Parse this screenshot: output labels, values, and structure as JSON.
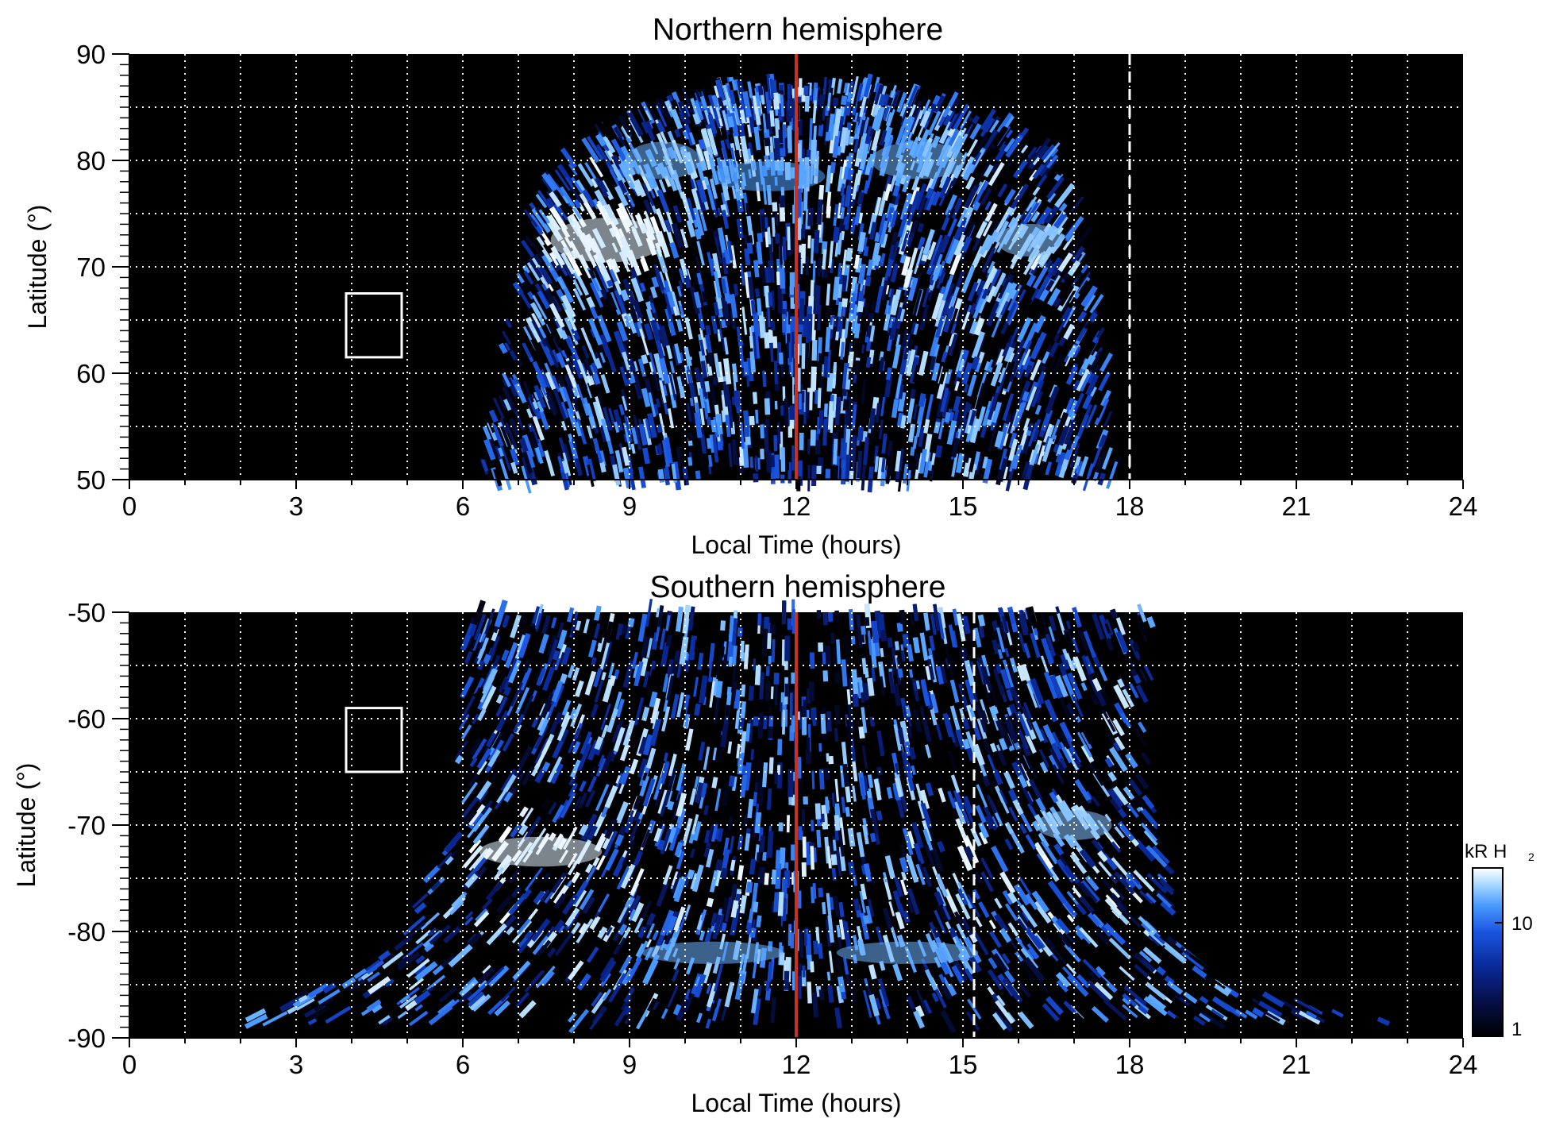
{
  "chart_data": [
    {
      "type": "heatmap",
      "title": "Northern hemisphere",
      "xlabel": "Local Time (hours)",
      "ylabel": "Latitude (°)",
      "xlim": [
        0,
        24
      ],
      "ylim": [
        50,
        90
      ],
      "xticks": [
        "0",
        "3",
        "6",
        "9",
        "12",
        "15",
        "18",
        "21",
        "24"
      ],
      "yticks": [
        "50",
        "60",
        "70",
        "80",
        "90"
      ],
      "grid": true,
      "grid_x_step": 1,
      "grid_y_step": 5,
      "noon_line_lt": 12,
      "noon_line_color": "#c8321e",
      "dashed_line_lt": 18,
      "box": {
        "lt": [
          3.9,
          4.9
        ],
        "lat": [
          61.5,
          67.5
        ]
      },
      "coverage": [
        [
          50,
          6.3,
          17.8
        ],
        [
          55,
          6.5,
          17.7
        ],
        [
          60,
          6.6,
          17.6
        ],
        [
          65,
          6.8,
          17.5
        ],
        [
          70,
          7.1,
          17.3
        ],
        [
          75,
          7.2,
          17.2
        ],
        [
          80,
          7.8,
          16.8
        ],
        [
          83,
          8.5,
          16.0
        ],
        [
          85,
          9.5,
          15.2
        ],
        [
          87,
          10.8,
          13.2
        ]
      ],
      "bright_spots": [
        {
          "lt": 8.6,
          "lat": 72.5,
          "dlt": 1.2,
          "dlat": 3.0,
          "value": 25
        },
        {
          "lt": 16.2,
          "lat": 72.5,
          "dlt": 0.7,
          "dlat": 2.2,
          "value": 14
        },
        {
          "lt": 9.6,
          "lat": 80.0,
          "dlt": 0.8,
          "dlat": 2.5,
          "value": 12
        },
        {
          "lt": 11.5,
          "lat": 78.5,
          "dlt": 1.2,
          "dlat": 2.0,
          "value": 10
        },
        {
          "lt": 14.2,
          "lat": 80.0,
          "dlt": 1.0,
          "dlat": 2.5,
          "value": 12
        }
      ]
    },
    {
      "type": "heatmap",
      "title": "Southern hemisphere",
      "xlabel": "Local Time (hours)",
      "ylabel": "Latitude (°)",
      "xlim": [
        0,
        24
      ],
      "ylim": [
        -90,
        -50
      ],
      "xticks": [
        "0",
        "3",
        "6",
        "9",
        "12",
        "15",
        "18",
        "21",
        "24"
      ],
      "yticks": [
        "-90",
        "-80",
        "-70",
        "-60",
        "-50"
      ],
      "grid": true,
      "grid_x_step": 1,
      "grid_y_step": 5,
      "noon_line_lt": 12,
      "noon_line_color": "#c8321e",
      "dashed_line_lt": 15.2,
      "box": {
        "lt": [
          3.9,
          4.9
        ],
        "lat": [
          -65,
          -59
        ]
      },
      "coverage": [
        [
          -50,
          6.0,
          18.4
        ],
        [
          -55,
          6.0,
          18.4
        ],
        [
          -60,
          6.0,
          18.3
        ],
        [
          -65,
          5.9,
          18.3
        ],
        [
          -70,
          5.8,
          18.5
        ],
        [
          -75,
          5.4,
          18.8
        ],
        [
          -80,
          5.0,
          19.0
        ],
        [
          -83,
          4.4,
          19.4
        ],
        [
          -85,
          3.8,
          19.8
        ],
        [
          -87,
          2.0,
          21.5
        ],
        [
          -88.5,
          1.7,
          23.2
        ]
      ],
      "bright_spots": [
        {
          "lt": 7.4,
          "lat": -72.5,
          "dlt": 1.3,
          "dlat": 2.0,
          "value": 25
        },
        {
          "lt": 17.0,
          "lat": -70.0,
          "dlt": 0.8,
          "dlat": 2.0,
          "value": 14
        },
        {
          "lt": 10.5,
          "lat": -82.0,
          "dlt": 1.5,
          "dlat": 1.5,
          "value": 12
        },
        {
          "lt": 14.0,
          "lat": -82.0,
          "dlt": 1.5,
          "dlat": 1.5,
          "value": 12
        }
      ]
    }
  ],
  "colorbar": {
    "unit_label": "kR H",
    "unit_subscript": "2",
    "tick_labels": [
      "1",
      "10"
    ],
    "range": [
      1,
      30
    ],
    "scale": "log",
    "colors": [
      "#000000",
      "#06104d",
      "#0a2a9a",
      "#1a55e0",
      "#4a9cff",
      "#a8d8ff",
      "#ffffff"
    ]
  }
}
